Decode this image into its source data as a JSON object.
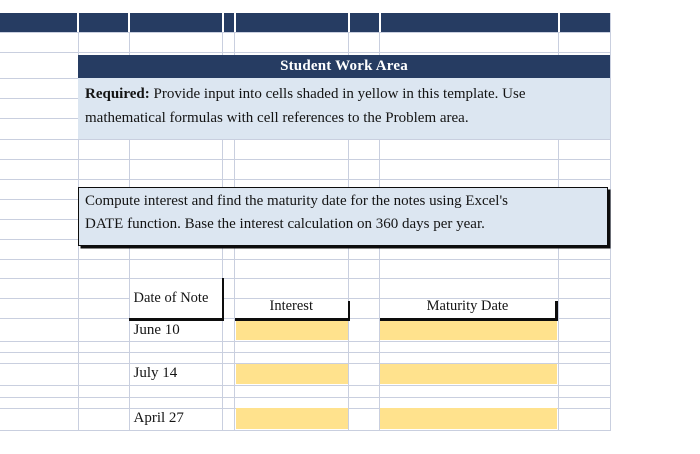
{
  "header": {
    "student_work_area": "Student Work Area"
  },
  "required_note": {
    "label": "Required:",
    "line1_rest": " Provide input into cells shaded in yellow in this template. Use",
    "line2": "mathematical formulas with cell references to the Problem area."
  },
  "instruction_box": {
    "line1": "Compute interest and find the maturity date for the notes using Excel's",
    "line2": "DATE function. Base the interest calculation on 360 days per year."
  },
  "table": {
    "columns": {
      "date_of_note": "Date of Note",
      "interest": "Interest",
      "maturity_date": "Maturity Date"
    },
    "rows": [
      {
        "date": "June 10"
      },
      {
        "date": "July 14"
      },
      {
        "date": "April 27"
      }
    ]
  },
  "colors": {
    "navy": "#263C62",
    "light_blue": "#DCE6F1",
    "input_yellow": "#FFE28D",
    "gridline": "#C9CFDF",
    "border_black": "#0D0D0D"
  }
}
